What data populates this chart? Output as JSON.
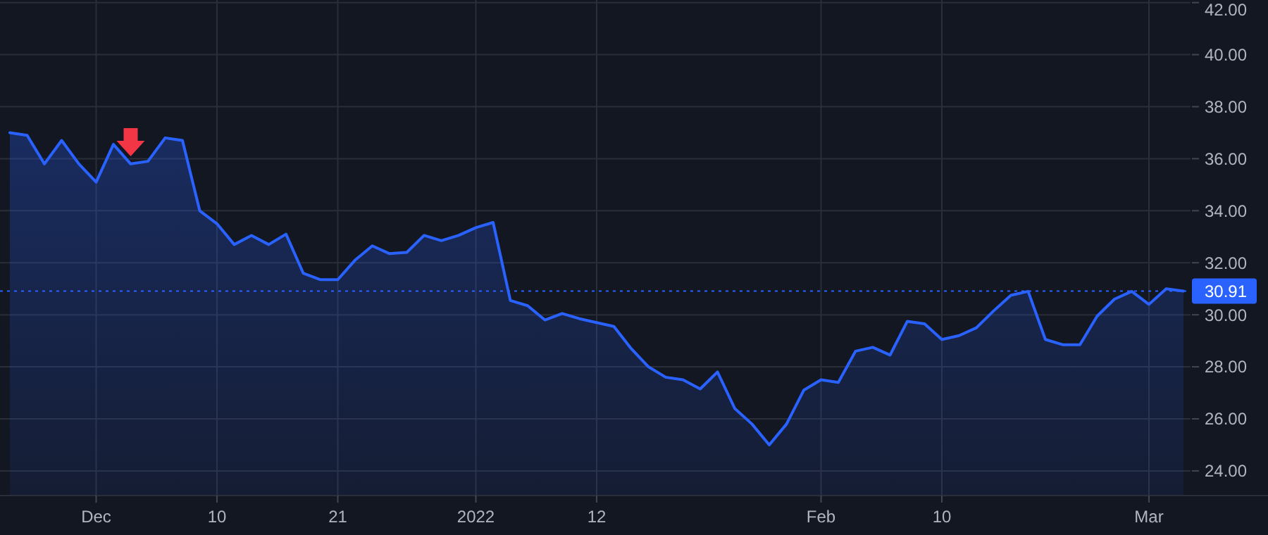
{
  "chart_data": {
    "type": "area",
    "categories": [
      null,
      null,
      null,
      null,
      null,
      "Dec",
      null,
      null,
      null,
      null,
      null,
      null,
      "10",
      null,
      null,
      null,
      null,
      null,
      null,
      "21",
      null,
      null,
      null,
      null,
      null,
      null,
      null,
      "2022",
      null,
      null,
      null,
      null,
      null,
      null,
      "12",
      null,
      null,
      null,
      null,
      null,
      null,
      null,
      null,
      null,
      null,
      null,
      null,
      "Feb",
      null,
      null,
      null,
      null,
      null,
      null,
      "10",
      null,
      null,
      null,
      null,
      null,
      null,
      null,
      null,
      null,
      null,
      null,
      "Mar",
      null,
      null
    ],
    "series": [
      {
        "color": "#2962ff",
        "values": [
          37.0,
          36.9,
          35.8,
          36.7,
          35.8,
          35.1,
          36.55,
          35.8,
          35.9,
          36.8,
          36.7,
          34.0,
          33.5,
          32.7,
          33.05,
          32.7,
          33.1,
          31.6,
          31.35,
          31.35,
          32.1,
          32.65,
          32.35,
          32.4,
          33.05,
          32.85,
          33.05,
          33.35,
          33.55,
          30.55,
          30.35,
          29.8,
          30.05,
          29.85,
          29.7,
          29.55,
          28.7,
          28.0,
          27.6,
          27.5,
          27.15,
          27.8,
          26.4,
          25.8,
          25.0,
          25.8,
          27.1,
          27.5,
          27.4,
          28.6,
          28.75,
          28.45,
          29.75,
          29.65,
          29.05,
          29.2,
          29.5,
          30.15,
          30.75,
          30.9,
          29.05,
          28.85,
          28.85,
          29.95,
          30.6,
          30.9,
          30.4,
          31.0,
          30.91
        ]
      }
    ],
    "ylim": [
      23.05,
      42.1
    ],
    "yticks": [
      {
        "value": 24,
        "label": "24.00"
      },
      {
        "value": 26,
        "label": "26.00"
      },
      {
        "value": 28,
        "label": "28.00"
      },
      {
        "value": 30,
        "label": "30.00"
      },
      {
        "value": 32,
        "label": "32.00"
      },
      {
        "value": 34,
        "label": "34.00"
      },
      {
        "value": 36,
        "label": "36.00"
      },
      {
        "value": 38,
        "label": "38.00"
      },
      {
        "value": 40,
        "label": "40.00"
      },
      {
        "value": 42,
        "label": "42.00"
      }
    ],
    "grid": true,
    "ref_lines": [
      {
        "axis": "y",
        "value": 30.91,
        "label": "30.91",
        "color": "#2962ff",
        "line_style": "dotted"
      }
    ]
  }
}
